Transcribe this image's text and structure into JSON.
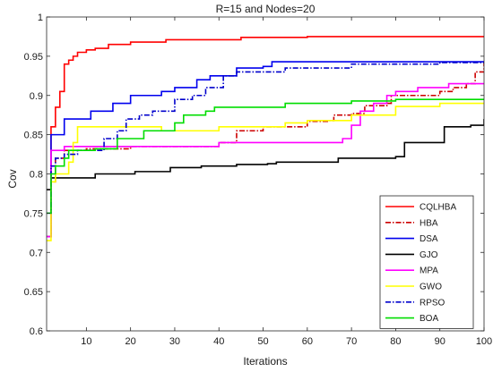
{
  "chart_data": {
    "type": "line",
    "title": "R=15 and Nodes=20",
    "xlabel": "Iterations",
    "ylabel": "Cov",
    "xlim": [
      1,
      100
    ],
    "ylim": [
      0.6,
      1.0
    ],
    "xticks": [
      10,
      20,
      30,
      40,
      50,
      60,
      70,
      80,
      90,
      100
    ],
    "yticks": [
      0.6,
      0.65,
      0.7,
      0.75,
      0.8,
      0.85,
      0.9,
      0.95,
      1
    ],
    "xtick_labels": [
      "10",
      "20",
      "30",
      "40",
      "50",
      "60",
      "70",
      "80",
      "90",
      "100"
    ],
    "ytick_labels": [
      "0.6",
      "0.65",
      "0.7",
      "0.75",
      "0.8",
      "0.85",
      "0.9",
      "0.95",
      "1"
    ],
    "grid": false,
    "legend_position": "bottom-right",
    "series": [
      {
        "name": "CQLHBA",
        "color": "#ff0000",
        "dash": "solid",
        "points": [
          [
            1,
            0.72
          ],
          [
            2,
            0.86
          ],
          [
            3,
            0.885
          ],
          [
            4,
            0.905
          ],
          [
            5,
            0.94
          ],
          [
            6,
            0.945
          ],
          [
            7,
            0.95
          ],
          [
            8,
            0.955
          ],
          [
            10,
            0.958
          ],
          [
            12,
            0.96
          ],
          [
            15,
            0.965
          ],
          [
            20,
            0.968
          ],
          [
            28,
            0.971
          ],
          [
            45,
            0.974
          ],
          [
            60,
            0.975
          ],
          [
            100,
            0.975
          ]
        ]
      },
      {
        "name": "HBA",
        "color": "#cc0000",
        "dash": "dashdot",
        "points": [
          [
            1,
            0.72
          ],
          [
            2,
            0.79
          ],
          [
            3,
            0.82
          ],
          [
            5,
            0.83
          ],
          [
            10,
            0.832
          ],
          [
            20,
            0.835
          ],
          [
            40,
            0.84
          ],
          [
            44,
            0.855
          ],
          [
            50,
            0.86
          ],
          [
            58,
            0.86
          ],
          [
            60,
            0.867
          ],
          [
            65,
            0.868
          ],
          [
            66,
            0.875
          ],
          [
            70,
            0.877
          ],
          [
            73,
            0.887
          ],
          [
            78,
            0.89
          ],
          [
            79,
            0.9
          ],
          [
            90,
            0.905
          ],
          [
            93,
            0.91
          ],
          [
            96,
            0.915
          ],
          [
            98,
            0.93
          ],
          [
            100,
            0.945
          ]
        ]
      },
      {
        "name": "DSA",
        "color": "#0000ee",
        "dash": "solid",
        "points": [
          [
            1,
            0.72
          ],
          [
            2,
            0.85
          ],
          [
            4,
            0.85
          ],
          [
            5,
            0.87
          ],
          [
            10,
            0.87
          ],
          [
            11,
            0.88
          ],
          [
            15,
            0.88
          ],
          [
            16,
            0.89
          ],
          [
            19,
            0.89
          ],
          [
            20,
            0.9
          ],
          [
            26,
            0.9
          ],
          [
            27,
            0.905
          ],
          [
            30,
            0.91
          ],
          [
            35,
            0.92
          ],
          [
            38,
            0.925
          ],
          [
            44,
            0.935
          ],
          [
            50,
            0.937
          ],
          [
            52,
            0.943
          ],
          [
            100,
            0.943
          ]
        ]
      },
      {
        "name": "GJO",
        "color": "#000000",
        "dash": "solid",
        "points": [
          [
            1,
            0.78
          ],
          [
            2,
            0.795
          ],
          [
            10,
            0.795
          ],
          [
            12,
            0.8
          ],
          [
            20,
            0.8
          ],
          [
            21,
            0.803
          ],
          [
            28,
            0.803
          ],
          [
            29,
            0.808
          ],
          [
            35,
            0.808
          ],
          [
            36,
            0.81
          ],
          [
            43,
            0.81
          ],
          [
            44,
            0.812
          ],
          [
            51,
            0.813
          ],
          [
            53,
            0.815
          ],
          [
            66,
            0.815
          ],
          [
            67,
            0.82
          ],
          [
            80,
            0.822
          ],
          [
            82,
            0.84
          ],
          [
            90,
            0.84
          ],
          [
            91,
            0.86
          ],
          [
            97,
            0.862
          ],
          [
            100,
            0.87
          ]
        ]
      },
      {
        "name": "MPA",
        "color": "#ff00ff",
        "dash": "solid",
        "points": [
          [
            1,
            0.72
          ],
          [
            2,
            0.83
          ],
          [
            5,
            0.835
          ],
          [
            20,
            0.835
          ],
          [
            40,
            0.84
          ],
          [
            68,
            0.845
          ],
          [
            70,
            0.862
          ],
          [
            72,
            0.88
          ],
          [
            75,
            0.89
          ],
          [
            78,
            0.9
          ],
          [
            80,
            0.905
          ],
          [
            85,
            0.91
          ],
          [
            92,
            0.915
          ],
          [
            100,
            0.915
          ]
        ]
      },
      {
        "name": "GWO",
        "color": "#ffff00",
        "dash": "solid",
        "points": [
          [
            1,
            0.715
          ],
          [
            2,
            0.79
          ],
          [
            3,
            0.8
          ],
          [
            5,
            0.8
          ],
          [
            6,
            0.815
          ],
          [
            7,
            0.84
          ],
          [
            8,
            0.86
          ],
          [
            25,
            0.86
          ],
          [
            27,
            0.855
          ],
          [
            40,
            0.86
          ],
          [
            55,
            0.865
          ],
          [
            60,
            0.868
          ],
          [
            70,
            0.875
          ],
          [
            80,
            0.886
          ],
          [
            90,
            0.89
          ],
          [
            100,
            0.89
          ]
        ]
      },
      {
        "name": "RPSO",
        "color": "#0000cc",
        "dash": "dashdot",
        "points": [
          [
            1,
            0.75
          ],
          [
            2,
            0.81
          ],
          [
            3,
            0.82
          ],
          [
            5,
            0.825
          ],
          [
            8,
            0.83
          ],
          [
            10,
            0.83
          ],
          [
            14,
            0.845
          ],
          [
            17,
            0.855
          ],
          [
            19,
            0.87
          ],
          [
            22,
            0.875
          ],
          [
            25,
            0.88
          ],
          [
            30,
            0.895
          ],
          [
            34,
            0.9
          ],
          [
            37,
            0.91
          ],
          [
            41,
            0.925
          ],
          [
            44,
            0.93
          ],
          [
            55,
            0.935
          ],
          [
            70,
            0.94
          ],
          [
            90,
            0.942
          ],
          [
            100,
            0.942
          ]
        ]
      },
      {
        "name": "BOA",
        "color": "#00dd00",
        "dash": "solid",
        "points": [
          [
            1,
            0.75
          ],
          [
            2,
            0.8
          ],
          [
            3,
            0.81
          ],
          [
            5,
            0.82
          ],
          [
            6,
            0.83
          ],
          [
            12,
            0.832
          ],
          [
            17,
            0.845
          ],
          [
            23,
            0.855
          ],
          [
            30,
            0.865
          ],
          [
            32,
            0.875
          ],
          [
            37,
            0.88
          ],
          [
            39,
            0.885
          ],
          [
            55,
            0.89
          ],
          [
            70,
            0.893
          ],
          [
            80,
            0.895
          ],
          [
            100,
            0.895
          ]
        ]
      }
    ]
  }
}
